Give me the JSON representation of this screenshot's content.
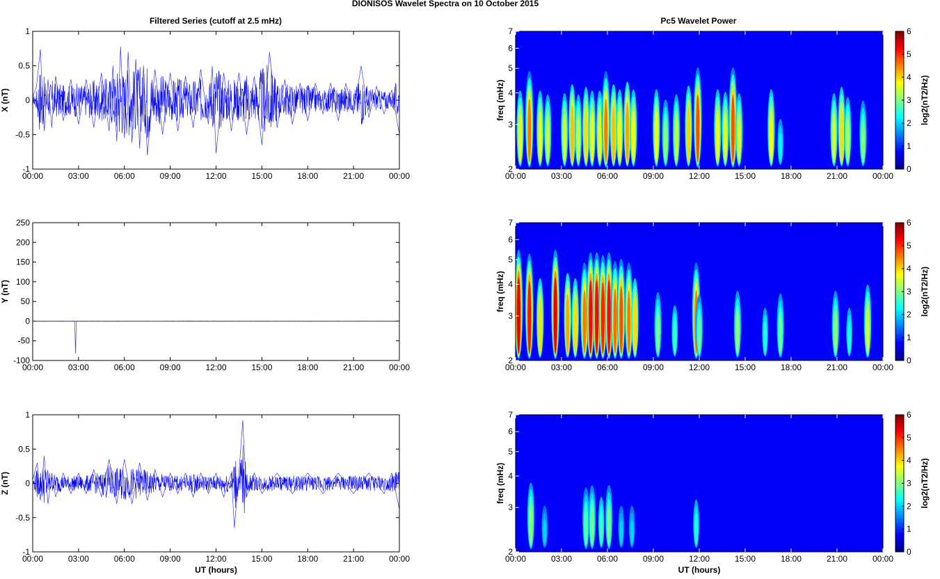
{
  "figure": {
    "title": "DIONISOS Wavelet Spectra on 10 October   2015",
    "left_title": "Filtered Series (cutoff at 2.5 mHz)",
    "right_title": "Pc5 Wavelet Power",
    "xlabel": "UT (hours)",
    "spectrum_ylabel": "freq (mHz)",
    "colorbar_label": "log2(nT2/Hz)"
  },
  "chart_data": [
    {
      "type": "line",
      "panel": "filtered-x",
      "title": "Filtered Series (cutoff at 2.5 mHz)",
      "xlabel": "",
      "ylabel": "X (nT)",
      "xlim": [
        0,
        24
      ],
      "ylim": [
        -1,
        1
      ],
      "x_tick_labels": [
        "00:00",
        "03:00",
        "06:00",
        "09:00",
        "12:00",
        "15:00",
        "18:00",
        "21:00",
        "00:00"
      ],
      "y_ticks": [
        -1,
        -0.5,
        0,
        0.5,
        1
      ],
      "y_tick_labels": [
        "-1",
        "-0.5",
        "0",
        "0.5",
        "1"
      ],
      "color": "#0000ff",
      "series": [
        {
          "x": [
            0,
            0.25,
            0.5,
            0.75,
            1,
            1.25,
            1.5,
            2,
            2.5,
            3,
            3.5,
            4,
            4.5,
            5,
            5.25,
            5.5,
            5.75,
            6,
            6.25,
            6.5,
            6.75,
            7,
            7.25,
            7.5,
            8,
            8.5,
            9,
            9.5,
            10,
            10.5,
            11,
            11.5,
            11.75,
            12,
            12.5,
            13,
            13.5,
            14,
            14.5,
            15,
            15.5,
            16,
            16.5,
            17,
            17.5,
            18,
            18.5,
            19,
            19.5,
            20,
            20.5,
            21,
            21.5,
            22,
            22.5,
            23,
            23.5,
            24
          ],
          "y": [
            0.05,
            0.2,
            0.74,
            -0.45,
            0.3,
            -0.4,
            0.35,
            -0.3,
            0.3,
            -0.35,
            0.3,
            -0.4,
            0.4,
            -0.45,
            0.5,
            -0.6,
            0.78,
            -0.55,
            0.7,
            -0.62,
            0.6,
            -0.7,
            0.5,
            -0.8,
            0.45,
            -0.5,
            0.4,
            -0.45,
            0.35,
            -0.4,
            0.45,
            -0.35,
            0.5,
            -0.77,
            0.4,
            -0.45,
            0.4,
            -0.5,
            0.35,
            -0.65,
            0.7,
            -0.4,
            0.3,
            -0.35,
            0.25,
            -0.3,
            0.25,
            -0.2,
            0.25,
            -0.3,
            0.25,
            -0.2,
            0.5,
            -0.25,
            0.2,
            -0.2,
            0.15,
            -0.5
          ]
        }
      ]
    },
    {
      "type": "line",
      "panel": "filtered-y",
      "xlabel": "",
      "ylabel": "Y (nT)",
      "xlim": [
        0,
        24
      ],
      "ylim": [
        -100,
        250
      ],
      "x_tick_labels": [
        "00:00",
        "03:00",
        "06:00",
        "09:00",
        "12:00",
        "15:00",
        "18:00",
        "21:00",
        "00:00"
      ],
      "y_ticks": [
        -100,
        -50,
        0,
        50,
        100,
        150,
        200,
        250
      ],
      "y_tick_labels": [
        "-100",
        "-50",
        "0",
        "50",
        "100",
        "150",
        "200",
        "250"
      ],
      "color": "#0000ff",
      "series": [
        {
          "x": [
            0,
            2.75,
            2.8,
            2.85,
            2.9,
            24
          ],
          "y": [
            0,
            0,
            -82,
            -5,
            0,
            0
          ]
        }
      ]
    },
    {
      "type": "line",
      "panel": "filtered-z",
      "xlabel": "UT (hours)",
      "ylabel": "Z (nT)",
      "xlim": [
        0,
        24
      ],
      "ylim": [
        -1,
        1
      ],
      "x_tick_labels": [
        "00:00",
        "03:00",
        "06:00",
        "09:00",
        "12:00",
        "15:00",
        "18:00",
        "21:00",
        "00:00"
      ],
      "y_ticks": [
        -1,
        -0.5,
        0,
        0.5,
        1
      ],
      "y_tick_labels": [
        "-1",
        "-0.5",
        "0",
        "0.5",
        "1"
      ],
      "color": "#0000ff",
      "series": [
        {
          "x": [
            0,
            0.3,
            0.5,
            0.75,
            1,
            1.25,
            1.5,
            2,
            2.5,
            3,
            3.5,
            4,
            4.5,
            5,
            5.5,
            6,
            6.5,
            7,
            7.5,
            8,
            8.5,
            9,
            9.5,
            10,
            10.5,
            11,
            11.5,
            12,
            12.5,
            13,
            13.2,
            13.5,
            13.75,
            14,
            14.5,
            15,
            16,
            17,
            18,
            19,
            20,
            21,
            22,
            23,
            23.5,
            24
          ],
          "y": [
            0.05,
            0.3,
            -0.25,
            0.4,
            -0.3,
            0.15,
            -0.2,
            0.15,
            -0.15,
            0.15,
            -0.15,
            0.2,
            -0.2,
            0.35,
            -0.3,
            0.35,
            -0.3,
            0.3,
            -0.25,
            0.2,
            -0.2,
            0.15,
            -0.15,
            0.15,
            -0.2,
            0.15,
            -0.15,
            0.15,
            -0.2,
            0.15,
            -0.65,
            0.15,
            0.92,
            -0.2,
            0.15,
            -0.15,
            0.15,
            -0.15,
            0.15,
            -0.15,
            0.15,
            -0.15,
            0.15,
            -0.15,
            0.15,
            -0.38
          ]
        }
      ]
    },
    {
      "type": "heatmap",
      "panel": "spectrum-x",
      "title": "Pc5 Wavelet Power",
      "xlabel": "",
      "ylabel": "freq (mHz)",
      "xlim": [
        0,
        24
      ],
      "ylim": [
        2,
        7
      ],
      "y_scale": "log",
      "x_tick_labels": [
        "00:00",
        "03:00",
        "06:00",
        "09:00",
        "12:00",
        "15:00",
        "18:00",
        "21:00",
        "00:00"
      ],
      "y_ticks": [
        2,
        3,
        4,
        5,
        6,
        7
      ],
      "y_tick_labels": [
        "2",
        "3",
        "4",
        "5",
        "6",
        "7"
      ],
      "colorbar": {
        "min": 0,
        "max": 6,
        "ticks": [
          0,
          1,
          2,
          3,
          4,
          5,
          6
        ],
        "label": "log2(nT2/Hz)",
        "colormap": "jet"
      },
      "blobs": [
        {
          "t": 0.3,
          "p": 3.5
        },
        {
          "t": 0.9,
          "p": 4.5
        },
        {
          "t": 1.6,
          "p": 3.5
        },
        {
          "t": 2.1,
          "p": 3.2
        },
        {
          "t": 3.2,
          "p": 3.3
        },
        {
          "t": 3.7,
          "p": 4
        },
        {
          "t": 4.1,
          "p": 3.2
        },
        {
          "t": 4.6,
          "p": 3.8
        },
        {
          "t": 5.0,
          "p": 3.5
        },
        {
          "t": 5.5,
          "p": 3.5
        },
        {
          "t": 5.9,
          "p": 4.5
        },
        {
          "t": 6.4,
          "p": 4
        },
        {
          "t": 6.8,
          "p": 3.6
        },
        {
          "t": 7.3,
          "p": 4.2
        },
        {
          "t": 7.7,
          "p": 3.6
        },
        {
          "t": 9.2,
          "p": 3.6
        },
        {
          "t": 9.8,
          "p": 2.8
        },
        {
          "t": 10.5,
          "p": 3.2
        },
        {
          "t": 11.3,
          "p": 3.9
        },
        {
          "t": 11.9,
          "p": 4.8
        },
        {
          "t": 13.2,
          "p": 3.6
        },
        {
          "t": 13.7,
          "p": 3.4
        },
        {
          "t": 14.2,
          "p": 4.8
        },
        {
          "t": 14.6,
          "p": 3.3
        },
        {
          "t": 16.7,
          "p": 3.6
        },
        {
          "t": 17.3,
          "p": 1.8
        },
        {
          "t": 20.8,
          "p": 3.3
        },
        {
          "t": 21.3,
          "p": 3.8
        },
        {
          "t": 21.7,
          "p": 3
        },
        {
          "t": 22.7,
          "p": 2.7
        }
      ]
    },
    {
      "type": "heatmap",
      "panel": "spectrum-y",
      "xlabel": "",
      "ylabel": "freq (mHz)",
      "xlim": [
        0,
        24
      ],
      "ylim": [
        2,
        7
      ],
      "y_scale": "log",
      "x_tick_labels": [
        "00:00",
        "03:00",
        "06:00",
        "09:00",
        "12:00",
        "15:00",
        "18:00",
        "21:00",
        "00:00"
      ],
      "y_ticks": [
        2,
        3,
        4,
        5,
        6,
        7
      ],
      "y_tick_labels": [
        "2",
        "3",
        "4",
        "5",
        "6",
        "7"
      ],
      "colorbar": {
        "min": 0,
        "max": 6,
        "ticks": [
          0,
          1,
          2,
          3,
          4,
          5,
          6
        ],
        "label": "log2(nT2/Hz)",
        "colormap": "jet"
      },
      "blobs": [
        {
          "t": 0.2,
          "p": 5.5
        },
        {
          "t": 0.9,
          "p": 5.2
        },
        {
          "t": 1.6,
          "p": 3.8
        },
        {
          "t": 2.6,
          "p": 5.5
        },
        {
          "t": 3.4,
          "p": 4.2
        },
        {
          "t": 3.9,
          "p": 3.8
        },
        {
          "t": 4.5,
          "p": 4.5
        },
        {
          "t": 4.9,
          "p": 5.3
        },
        {
          "t": 5.3,
          "p": 5.3
        },
        {
          "t": 5.7,
          "p": 5.1
        },
        {
          "t": 6.1,
          "p": 5.3
        },
        {
          "t": 6.5,
          "p": 4.6
        },
        {
          "t": 6.9,
          "p": 4.8
        },
        {
          "t": 7.4,
          "p": 4.5
        },
        {
          "t": 7.8,
          "p": 3.8
        },
        {
          "t": 9.3,
          "p": 2.7
        },
        {
          "t": 10.4,
          "p": 2.2
        },
        {
          "t": 11.8,
          "p": 4.5
        },
        {
          "t": 12.0,
          "p": 2.5
        },
        {
          "t": 14.5,
          "p": 2.8
        },
        {
          "t": 16.3,
          "p": 2.0
        },
        {
          "t": 17.3,
          "p": 2.6
        },
        {
          "t": 20.9,
          "p": 2.8
        },
        {
          "t": 21.8,
          "p": 2.0
        },
        {
          "t": 23.0,
          "p": 3.3
        }
      ]
    },
    {
      "type": "heatmap",
      "panel": "spectrum-z",
      "xlabel": "UT (hours)",
      "ylabel": "freq (mHz)",
      "xlim": [
        0,
        24
      ],
      "ylim": [
        2,
        7
      ],
      "y_scale": "log",
      "x_tick_labels": [
        "00:00",
        "03:00",
        "06:00",
        "09:00",
        "12:00",
        "15:00",
        "18:00",
        "21:00",
        "00:00"
      ],
      "y_ticks": [
        2,
        3,
        4,
        5,
        6,
        7
      ],
      "y_tick_labels": [
        "2",
        "3",
        "4",
        "5",
        "6",
        "7"
      ],
      "colorbar": {
        "min": 0,
        "max": 6,
        "ticks": [
          0,
          1,
          2,
          3,
          4,
          5,
          6
        ],
        "label": "log2(nT2/Hz)",
        "colormap": "jet"
      },
      "blobs": [
        {
          "t": 1.0,
          "p": 2.8
        },
        {
          "t": 1.9,
          "p": 1.5
        },
        {
          "t": 4.6,
          "p": 2.4
        },
        {
          "t": 5.0,
          "p": 2.6
        },
        {
          "t": 5.6,
          "p": 2.2
        },
        {
          "t": 6.1,
          "p": 2.6
        },
        {
          "t": 6.9,
          "p": 1.5
        },
        {
          "t": 7.6,
          "p": 1.5
        },
        {
          "t": 11.8,
          "p": 2.0
        }
      ]
    }
  ]
}
